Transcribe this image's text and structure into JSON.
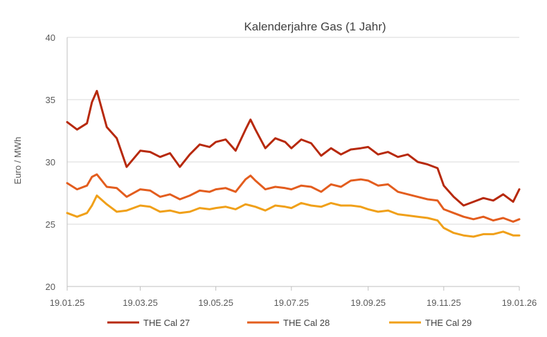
{
  "chart_data": {
    "type": "line",
    "title": "Kalenderjahre Gas (1 Jahr)",
    "xlabel": "",
    "ylabel": "Euro / MWh",
    "ylim": [
      20,
      40
    ],
    "yticks": [
      "20",
      "25",
      "30",
      "35",
      "40"
    ],
    "xticks": [
      "19.01.25",
      "19.03.25",
      "19.05.25",
      "19.07.25",
      "19.09.25",
      "19.11.25",
      "19.01.26"
    ],
    "grid": true,
    "legend_position": "bottom",
    "x_start": "2025-01-19",
    "x_end": "2026-01-19",
    "x": [
      "2025-01-19",
      "2025-01-27",
      "2025-02-04",
      "2025-02-08",
      "2025-02-12",
      "2025-02-20",
      "2025-02-28",
      "2025-03-08",
      "2025-03-19",
      "2025-03-27",
      "2025-04-04",
      "2025-04-12",
      "2025-04-20",
      "2025-04-28",
      "2025-05-06",
      "2025-05-14",
      "2025-05-19",
      "2025-05-27",
      "2025-06-04",
      "2025-06-12",
      "2025-06-16",
      "2025-06-20",
      "2025-06-28",
      "2025-07-06",
      "2025-07-14",
      "2025-07-19",
      "2025-07-27",
      "2025-08-04",
      "2025-08-12",
      "2025-08-20",
      "2025-08-28",
      "2025-09-05",
      "2025-09-13",
      "2025-09-19",
      "2025-09-27",
      "2025-10-05",
      "2025-10-13",
      "2025-10-21",
      "2025-10-29",
      "2025-11-06",
      "2025-11-14",
      "2025-11-19",
      "2025-11-27",
      "2025-12-05",
      "2025-12-13",
      "2025-12-21",
      "2025-12-29",
      "2026-01-06",
      "2026-01-14",
      "2026-01-19"
    ],
    "series": [
      {
        "name": "THE Cal 27",
        "color": "#b7290c",
        "values": [
          33.2,
          32.6,
          33.1,
          34.8,
          35.7,
          32.8,
          31.9,
          29.6,
          30.9,
          30.8,
          30.4,
          30.7,
          29.6,
          30.6,
          31.4,
          31.2,
          31.6,
          31.8,
          30.9,
          32.6,
          33.4,
          32.6,
          31.1,
          31.9,
          31.6,
          31.1,
          31.8,
          31.5,
          30.5,
          31.1,
          30.6,
          31.0,
          31.1,
          31.2,
          30.6,
          30.8,
          30.4,
          30.6,
          30.0,
          29.8,
          29.5,
          28.1,
          27.2,
          26.5,
          26.8,
          27.1,
          26.9,
          27.4,
          26.8,
          27.8
        ]
      },
      {
        "name": "THE Cal 28",
        "color": "#e35d1e",
        "values": [
          28.3,
          27.8,
          28.1,
          28.8,
          29.0,
          28.0,
          27.9,
          27.2,
          27.8,
          27.7,
          27.2,
          27.4,
          27.0,
          27.3,
          27.7,
          27.6,
          27.8,
          27.9,
          27.6,
          28.6,
          28.9,
          28.5,
          27.8,
          28.0,
          27.9,
          27.8,
          28.1,
          28.0,
          27.6,
          28.2,
          28.0,
          28.5,
          28.6,
          28.5,
          28.1,
          28.2,
          27.6,
          27.4,
          27.2,
          27.0,
          26.9,
          26.2,
          25.9,
          25.6,
          25.4,
          25.6,
          25.3,
          25.5,
          25.2,
          25.4
        ]
      },
      {
        "name": "THE Cal 29",
        "color": "#f0a019",
        "values": [
          25.9,
          25.6,
          25.9,
          26.5,
          27.3,
          26.6,
          26.0,
          26.1,
          26.5,
          26.4,
          26.0,
          26.1,
          25.9,
          26.0,
          26.3,
          26.2,
          26.3,
          26.4,
          26.2,
          26.6,
          26.5,
          26.4,
          26.1,
          26.5,
          26.4,
          26.3,
          26.7,
          26.5,
          26.4,
          26.7,
          26.5,
          26.5,
          26.4,
          26.2,
          26.0,
          26.1,
          25.8,
          25.7,
          25.6,
          25.5,
          25.3,
          24.7,
          24.3,
          24.1,
          24.0,
          24.2,
          24.2,
          24.4,
          24.1,
          24.1
        ]
      }
    ]
  }
}
